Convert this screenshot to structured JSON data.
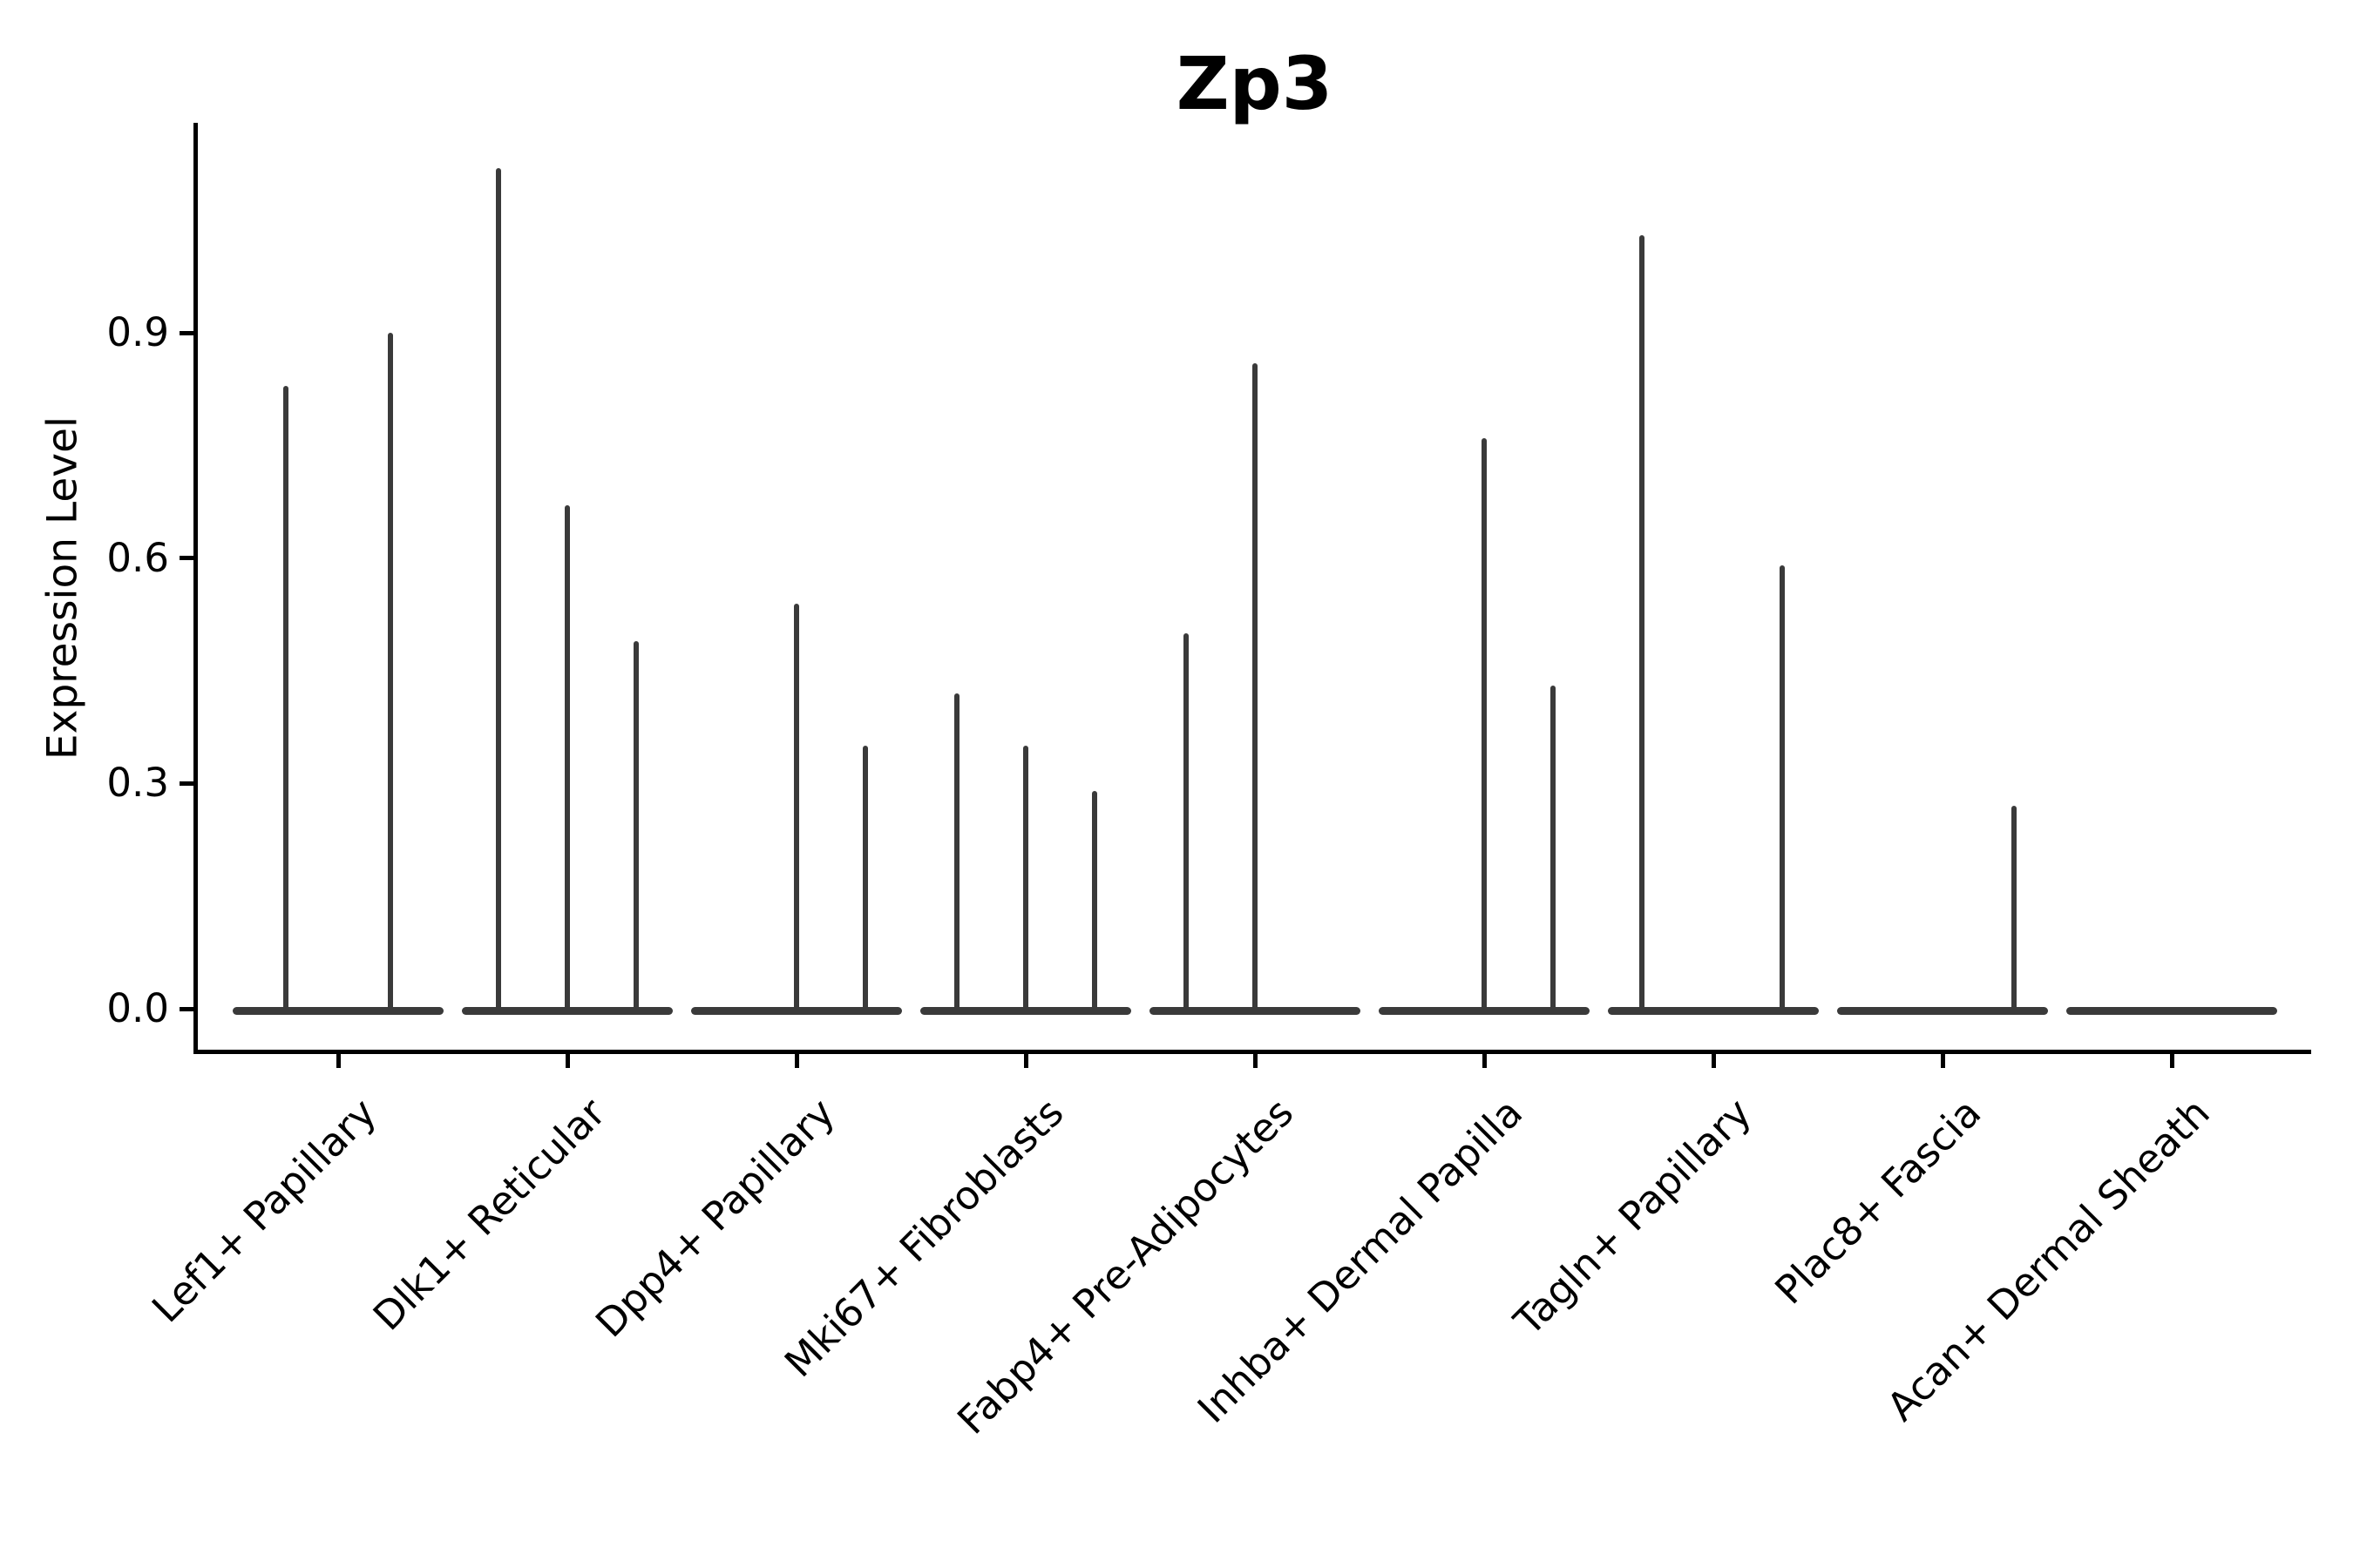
{
  "chart_data": {
    "type": "violin",
    "title": "Zp3",
    "xlabel": "",
    "ylabel": "Expression Level",
    "yticks": [
      0.0,
      0.3,
      0.6,
      0.9
    ],
    "ylim": [
      -0.06,
      1.18
    ],
    "grid": false,
    "legend": "none",
    "violin_color": "#3a3a3a",
    "axis_color": "#000000",
    "text_color": "#000000",
    "band_width_frac": 0.92,
    "note_shape": "violins collapsed to a flat band at 0 with thin density spikes up to the max expressing cell",
    "categories": [
      {
        "label": "Lef1+ Papillary",
        "spikes": [
          {
            "offset": -0.23,
            "peak": 0.83
          },
          {
            "offset": 0.23,
            "peak": 0.9
          }
        ]
      },
      {
        "label": "Dlk1+ Reticular",
        "spikes": [
          {
            "offset": -0.3,
            "peak": 1.12
          },
          {
            "offset": 0.0,
            "peak": 0.67
          },
          {
            "offset": 0.3,
            "peak": 0.49
          }
        ]
      },
      {
        "label": "Dpp4+ Papillary",
        "spikes": [
          {
            "offset": 0.0,
            "peak": 0.54
          },
          {
            "offset": 0.3,
            "peak": 0.35
          }
        ]
      },
      {
        "label": "Mki67+ Fibroblasts",
        "spikes": [
          {
            "offset": -0.3,
            "peak": 0.42
          },
          {
            "offset": 0.0,
            "peak": 0.35
          },
          {
            "offset": 0.3,
            "peak": 0.29
          }
        ]
      },
      {
        "label": "Fabp4+ Pre-Adipocytes",
        "spikes": [
          {
            "offset": -0.3,
            "peak": 0.5
          },
          {
            "offset": 0.0,
            "peak": 0.86
          }
        ]
      },
      {
        "label": "Inhba+ Dermal Papilla",
        "spikes": [
          {
            "offset": 0.0,
            "peak": 0.76
          },
          {
            "offset": 0.3,
            "peak": 0.43
          }
        ]
      },
      {
        "label": "Tagln+ Papillary",
        "spikes": [
          {
            "offset": -0.31,
            "peak": 1.03
          },
          {
            "offset": 0.3,
            "peak": 0.59
          }
        ]
      },
      {
        "label": "Plac8+ Fascia",
        "spikes": [
          {
            "offset": 0.31,
            "peak": 0.27
          }
        ]
      },
      {
        "label": "Acan+ Dermal Sheath",
        "spikes": []
      }
    ]
  }
}
